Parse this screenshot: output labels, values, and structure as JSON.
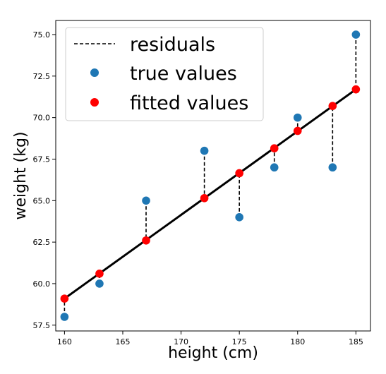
{
  "chart_data": {
    "type": "scatter",
    "xlabel": "height (cm)",
    "ylabel": "weight (kg)",
    "xlim": [
      159.25,
      186.25
    ],
    "ylim": [
      57.15,
      75.85
    ],
    "x_ticks": [
      "160",
      "165",
      "170",
      "175",
      "180",
      "185"
    ],
    "y_ticks": [
      "57.5",
      "60.0",
      "62.5",
      "65.0",
      "67.5",
      "70.0",
      "72.5",
      "75.0"
    ],
    "x_tick_values": [
      160,
      165,
      170,
      175,
      180,
      185
    ],
    "y_tick_values": [
      57.5,
      60.0,
      62.5,
      65.0,
      67.5,
      70.0,
      72.5,
      75.0
    ],
    "x": [
      160,
      163,
      167,
      172,
      175,
      178,
      180,
      183,
      185
    ],
    "true_values": [
      58.0,
      60.0,
      65.0,
      68.0,
      64.0,
      67.0,
      70.0,
      67.0,
      75.0
    ],
    "fitted_values": [
      59.1,
      60.6,
      62.6,
      65.15,
      66.65,
      68.15,
      69.2,
      70.7,
      71.7
    ],
    "fit_line": {
      "x": [
        160,
        185
      ],
      "y": [
        59.1,
        71.7
      ],
      "color": "#000000"
    },
    "series": [
      {
        "name": "residuals",
        "style": "dashed",
        "color": "#000000"
      },
      {
        "name": "true values",
        "color": "#1f77b4"
      },
      {
        "name": "fitted values",
        "color": "#ff0000"
      }
    ],
    "legend_position": "top-left",
    "grid": false
  }
}
